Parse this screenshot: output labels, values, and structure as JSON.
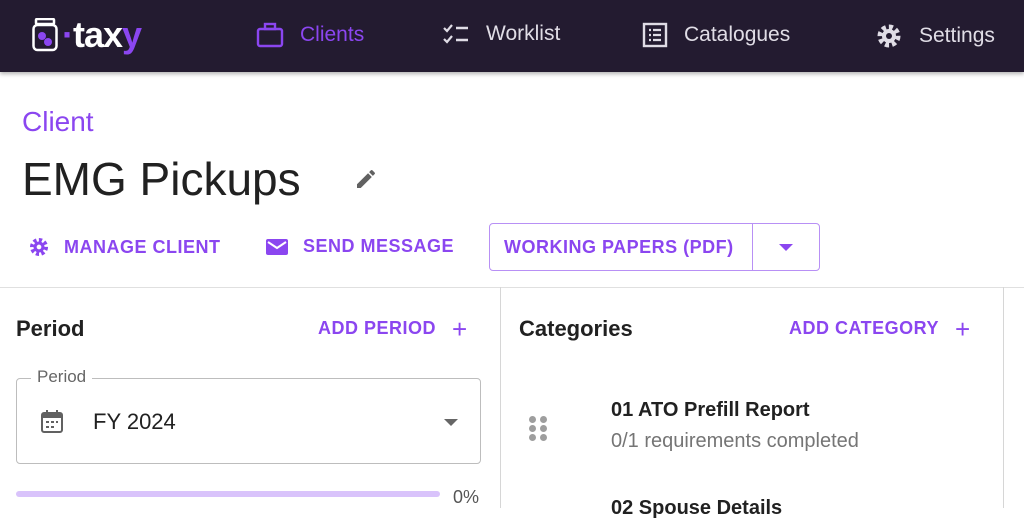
{
  "nav": {
    "brand": "taxy",
    "items": [
      {
        "label": "Clients",
        "icon": "briefcase-icon",
        "active": true
      },
      {
        "label": "Worklist",
        "icon": "checklist-icon"
      },
      {
        "label": "Catalogues",
        "icon": "list-alt-icon"
      },
      {
        "label": "Settings",
        "icon": "gear-icon"
      }
    ]
  },
  "header": {
    "label": "Client",
    "title": "EMG Pickups"
  },
  "actions": {
    "manage": "MANAGE CLIENT",
    "send": "SEND MESSAGE",
    "working_papers": "WORKING PAPERS (PDF)"
  },
  "period": {
    "heading": "Period",
    "add": "ADD PERIOD",
    "field_label": "Period",
    "value": "FY 2024",
    "progress": 0,
    "progress_label": "0%"
  },
  "categories": {
    "heading": "Categories",
    "add": "ADD CATEGORY",
    "items": [
      {
        "name": "01 ATO Prefill Report",
        "status": "0/1 requirements completed"
      },
      {
        "name": "02 Spouse Details"
      }
    ]
  },
  "colors": {
    "accent": "#8b46f0",
    "nav_bg": "#231b30"
  }
}
